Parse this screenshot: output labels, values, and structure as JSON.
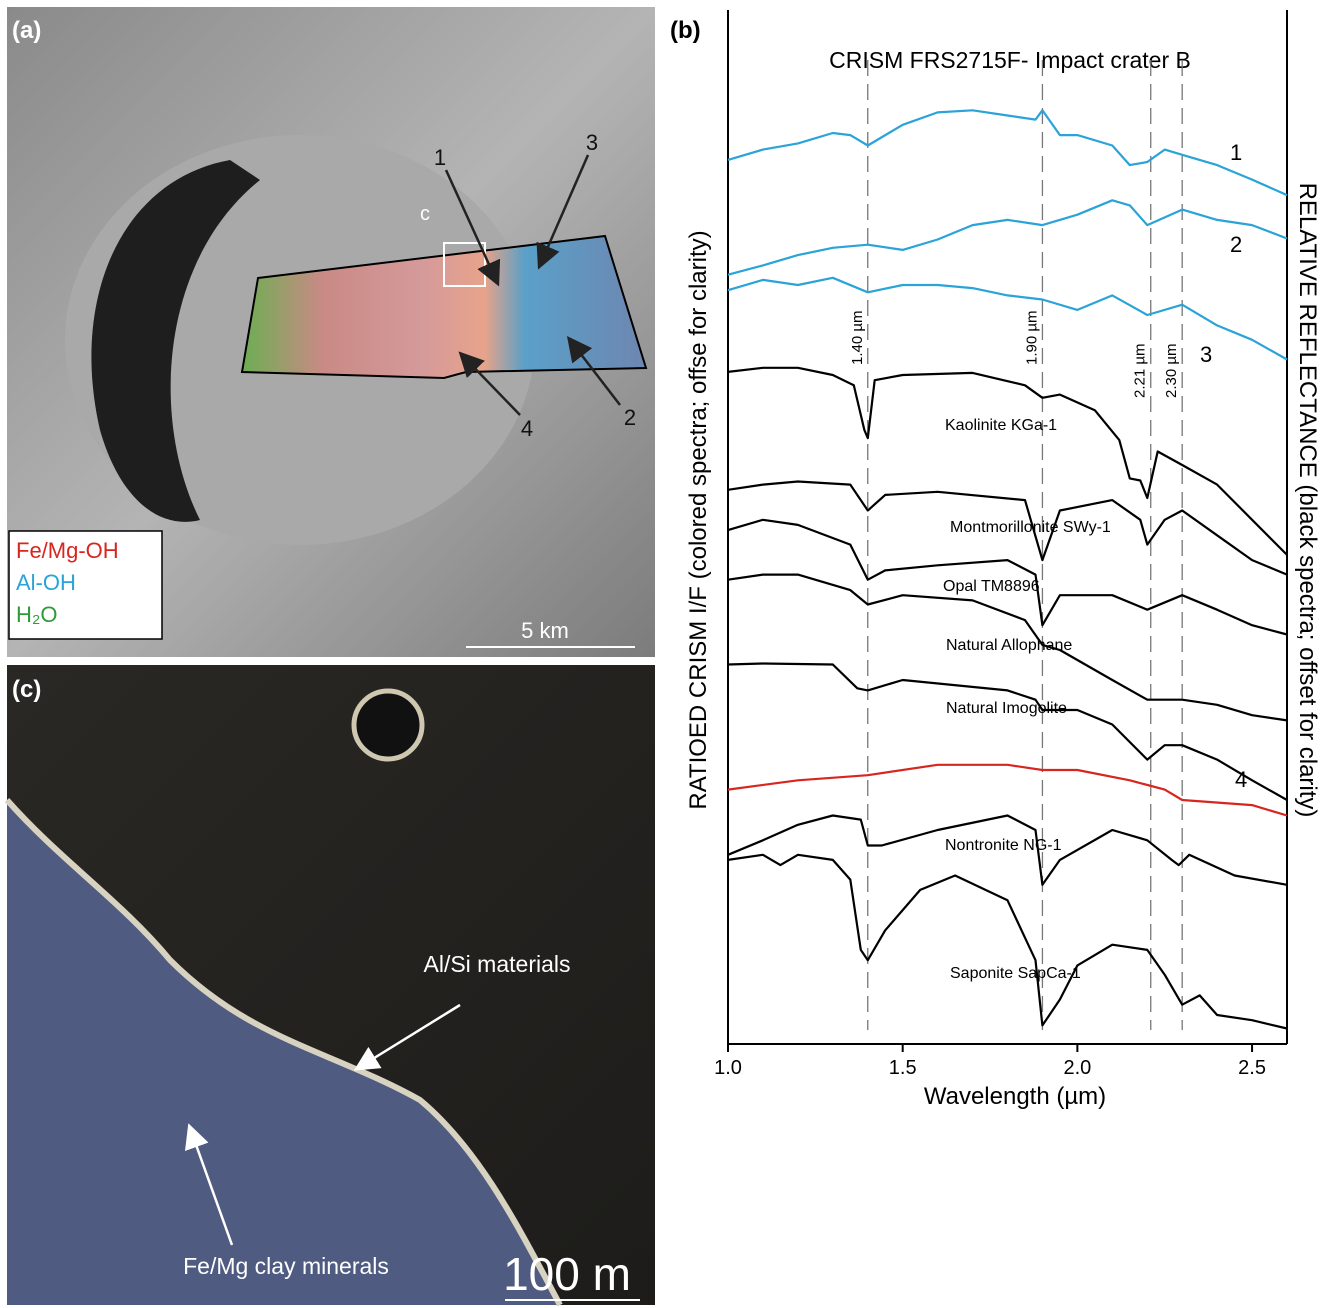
{
  "panel_a": {
    "label": "(a)",
    "site_label": "c",
    "arrows": [
      "1",
      "2",
      "3",
      "4"
    ],
    "legend": [
      "Fe/Mg-OH",
      "Al-OH",
      "H₂O"
    ],
    "scale_bar": "5 km"
  },
  "panel_c": {
    "label": "(c)",
    "annotations": [
      "Al/Si materials",
      "Fe/Mg clay minerals"
    ],
    "scale_bar": "100 m"
  },
  "chart_data": {
    "type": "line",
    "panel_label": "(b)",
    "title": "CRISM FRS2715F- Impact crater B",
    "xlabel": "Wavelength (µm)",
    "ylabel": "RATIOED CRISM I/F (colored spectra; offse for clarity)",
    "y2label": "RELATIVE REFLECTANCE (black spectra; offset for clarity)",
    "xlim": [
      1.0,
      2.6
    ],
    "xticks": [
      {
        "value": 1,
        "label": "1.0"
      },
      1.5,
      {
        "value": 2,
        "label": "2.0"
      },
      2.5
    ],
    "ylim": [
      0,
      100
    ],
    "reference_lines": [
      {
        "x": 1.4,
        "label": "1.40 µm"
      },
      {
        "x": 1.9,
        "label": "1.90 µm"
      },
      {
        "x": 2.21,
        "label": "2.21 µm"
      },
      {
        "x": 2.3,
        "label": "2.30 µm"
      }
    ],
    "series": [
      {
        "name": "1",
        "color": "#2aa3d8",
        "x": [
          1.0,
          1.1,
          1.2,
          1.3,
          1.35,
          1.4,
          1.5,
          1.6,
          1.7,
          1.8,
          1.88,
          1.9,
          1.95,
          2.0,
          2.1,
          2.15,
          2.2,
          2.25,
          2.3,
          2.4,
          2.5,
          2.6
        ],
        "values": [
          85.5,
          86.5,
          87.1,
          88.1,
          87.9,
          86.9,
          88.9,
          90.1,
          90.3,
          89.8,
          89.4,
          90.3,
          87.9,
          87.9,
          86.9,
          85.0,
          85.3,
          86.5,
          86.0,
          85.0,
          83.6,
          82.1
        ]
      },
      {
        "name": "2",
        "color": "#2aa3d8",
        "x": [
          1.0,
          1.1,
          1.2,
          1.3,
          1.4,
          1.5,
          1.6,
          1.7,
          1.8,
          1.9,
          2.0,
          2.1,
          2.15,
          2.2,
          2.3,
          2.4,
          2.5,
          2.6
        ],
        "values": [
          74.4,
          75.3,
          76.3,
          77.0,
          77.3,
          76.8,
          77.8,
          79.2,
          79.7,
          79.2,
          80.2,
          81.6,
          81.1,
          79.2,
          80.7,
          79.7,
          79.2,
          77.9
        ]
      },
      {
        "name": "3",
        "color": "#2aa3d8",
        "x": [
          1.0,
          1.1,
          1.2,
          1.3,
          1.4,
          1.5,
          1.6,
          1.7,
          1.8,
          1.9,
          2.0,
          2.1,
          2.2,
          2.3,
          2.4,
          2.5,
          2.6
        ],
        "values": [
          72.9,
          73.9,
          73.4,
          74.1,
          72.7,
          73.4,
          73.4,
          73.1,
          72.4,
          72.0,
          71.0,
          72.4,
          70.5,
          71.5,
          69.5,
          68.1,
          66.2
        ]
      },
      {
        "name": "Kaolinite KGa-1",
        "color": "#000000",
        "x": [
          1.0,
          1.1,
          1.2,
          1.3,
          1.36,
          1.39,
          1.4,
          1.42,
          1.5,
          1.7,
          1.85,
          1.9,
          1.95,
          2.05,
          2.12,
          2.15,
          2.18,
          2.2,
          2.23,
          2.3,
          2.4,
          2.5,
          2.6
        ],
        "values": [
          65.0,
          65.4,
          65.4,
          64.7,
          63.7,
          59.4,
          58.6,
          64.2,
          64.7,
          64.9,
          63.7,
          62.5,
          62.8,
          61.3,
          58.4,
          54.7,
          54.5,
          52.8,
          57.3,
          56.0,
          54.1,
          50.7,
          47.3
        ]
      },
      {
        "name": "Montmorillonite SWy-1",
        "color": "#000000",
        "x": [
          1.0,
          1.1,
          1.2,
          1.35,
          1.4,
          1.45,
          1.6,
          1.85,
          1.9,
          1.95,
          2.1,
          2.18,
          2.2,
          2.25,
          2.3,
          2.4,
          2.5,
          2.6
        ],
        "values": [
          53.6,
          54.1,
          54.4,
          54.1,
          51.6,
          53.1,
          53.4,
          52.6,
          46.8,
          51.6,
          52.6,
          50.7,
          48.3,
          50.7,
          51.6,
          49.2,
          46.8,
          45.4
        ]
      },
      {
        "name": "Opal TM8896",
        "color": "#000000",
        "x": [
          1.0,
          1.1,
          1.2,
          1.35,
          1.4,
          1.45,
          1.6,
          1.8,
          1.88,
          1.9,
          1.95,
          2.1,
          2.2,
          2.3,
          2.4,
          2.5,
          2.6
        ],
        "values": [
          49.7,
          50.7,
          50.2,
          48.3,
          44.9,
          45.8,
          46.3,
          46.8,
          45.4,
          40.5,
          43.4,
          43.4,
          42.0,
          43.4,
          42.0,
          40.5,
          39.6
        ]
      },
      {
        "name": "Natural Allophane",
        "color": "#000000",
        "x": [
          1.0,
          1.1,
          1.2,
          1.35,
          1.4,
          1.5,
          1.7,
          1.85,
          1.9,
          1.95,
          2.1,
          2.2,
          2.3,
          2.4,
          2.5,
          2.6
        ],
        "values": [
          44.9,
          45.4,
          45.4,
          43.9,
          42.5,
          43.4,
          42.9,
          41.0,
          38.6,
          38.1,
          35.2,
          33.3,
          33.3,
          32.8,
          31.8,
          31.3
        ]
      },
      {
        "name": "Natural Imogolite",
        "color": "#000000",
        "x": [
          1.0,
          1.1,
          1.3,
          1.37,
          1.4,
          1.5,
          1.8,
          1.88,
          1.9,
          2.0,
          2.1,
          2.2,
          2.25,
          2.3,
          2.4,
          2.5,
          2.6
        ],
        "values": [
          36.7,
          36.8,
          36.7,
          34.4,
          34.2,
          35.2,
          34.2,
          33.3,
          32.3,
          32.3,
          30.9,
          27.5,
          28.9,
          28.9,
          27.5,
          25.5,
          23.6
        ]
      },
      {
        "name": "4",
        "color": "#d7261e",
        "x": [
          1.0,
          1.2,
          1.4,
          1.6,
          1.8,
          1.9,
          2.0,
          2.15,
          2.25,
          2.3,
          2.5,
          2.6
        ],
        "values": [
          24.6,
          25.5,
          26.0,
          27.0,
          27.0,
          26.5,
          26.5,
          25.5,
          24.6,
          23.6,
          23.1,
          22.1
        ]
      },
      {
        "name": "Nontronite NG-1",
        "color": "#000000",
        "x": [
          1.0,
          1.1,
          1.2,
          1.3,
          1.38,
          1.4,
          1.44,
          1.6,
          1.8,
          1.88,
          1.9,
          1.95,
          2.1,
          2.2,
          2.27,
          2.29,
          2.32,
          2.45,
          2.6
        ],
        "values": [
          18.3,
          19.7,
          21.2,
          22.1,
          21.7,
          19.2,
          19.2,
          20.7,
          22.1,
          20.7,
          15.4,
          17.8,
          20.7,
          19.7,
          17.8,
          17.3,
          18.3,
          16.3,
          15.4
        ]
      },
      {
        "name": "Saponite SapCa-1",
        "color": "#000000",
        "x": [
          1.0,
          1.1,
          1.15,
          1.2,
          1.3,
          1.35,
          1.38,
          1.4,
          1.45,
          1.55,
          1.65,
          1.8,
          1.88,
          1.9,
          1.95,
          2.0,
          2.1,
          2.2,
          2.25,
          2.3,
          2.35,
          2.4,
          2.5,
          2.6
        ],
        "values": [
          17.8,
          18.3,
          17.3,
          18.3,
          17.8,
          15.9,
          9.1,
          8.1,
          11.0,
          14.9,
          16.3,
          13.9,
          8.1,
          1.8,
          4.3,
          7.6,
          9.6,
          9.1,
          6.7,
          3.8,
          4.7,
          2.8,
          2.3,
          1.5
        ]
      }
    ]
  }
}
